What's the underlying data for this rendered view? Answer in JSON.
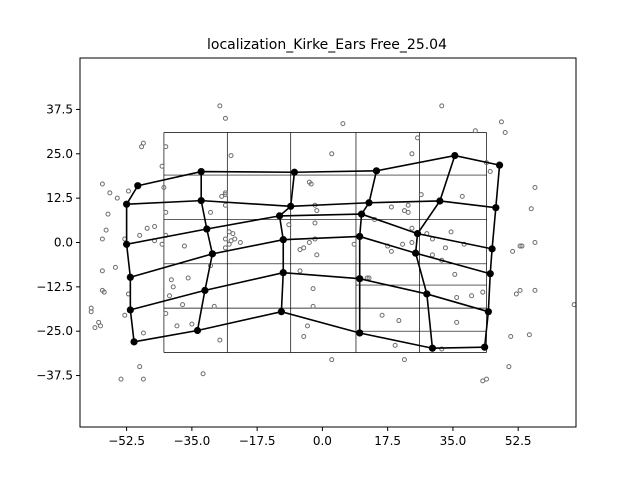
{
  "chart_data": {
    "type": "scatter",
    "title": "localization_Kirke_Ears Free_25.04",
    "xlabel": "",
    "ylabel": "",
    "xlim": [
      -65,
      68
    ],
    "ylim": [
      -52,
      52
    ],
    "x_ticks": [
      -52.5,
      -35.0,
      -17.5,
      0.0,
      17.5,
      35.0,
      52.5
    ],
    "x_tick_labels": [
      "−52.5",
      "−35.0",
      "−17.5",
      "0.0",
      "17.5",
      "35.0",
      "52.5"
    ],
    "y_ticks": [
      37.5,
      25.0,
      12.5,
      0.0,
      -12.5,
      -25.0,
      -37.5
    ],
    "y_tick_labels": [
      "37.5",
      "25.0",
      "12.5",
      "0.0",
      "−12.5",
      "−25.0",
      "−37.5"
    ],
    "reference_grid": {
      "x": [
        -42.5,
        -25.5,
        -8.5,
        9.0,
        26.0,
        44.0
      ],
      "y": [
        31.0,
        19.0,
        6.5,
        -6.0,
        -18.5,
        -31.0
      ],
      "extra_y": [
        -12.0,
        -25.0
      ]
    },
    "mesh_rows": [
      [
        [
          -49.5,
          16.0
        ],
        [
          -32.5,
          20.0
        ],
        [
          -7.5,
          19.8
        ],
        [
          14.5,
          20.2
        ],
        [
          35.5,
          24.5
        ],
        [
          47.5,
          21.8
        ]
      ],
      [
        [
          -52.5,
          10.8
        ],
        [
          -32.5,
          11.8
        ],
        [
          -8.5,
          10.2
        ],
        [
          12.5,
          11.2
        ],
        [
          31.5,
          11.7
        ],
        [
          46.5,
          9.8
        ]
      ],
      [
        [
          -52.5,
          -0.5
        ],
        [
          -31.0,
          3.8
        ],
        [
          -11.5,
          7.5
        ],
        [
          10.5,
          8.0
        ],
        [
          25.5,
          2.5
        ],
        [
          45.5,
          -1.8
        ]
      ],
      [
        [
          -51.5,
          -9.8
        ],
        [
          -29.5,
          -3.2
        ],
        [
          -10.5,
          0.8
        ],
        [
          10.0,
          1.7
        ],
        [
          25.0,
          -3.0
        ],
        [
          45.0,
          -8.8
        ]
      ],
      [
        [
          -51.5,
          -19.0
        ],
        [
          -31.5,
          -13.5
        ],
        [
          -10.5,
          -8.5
        ],
        [
          10.0,
          -10.2
        ],
        [
          28.0,
          -14.5
        ],
        [
          44.5,
          -19.5
        ]
      ],
      [
        [
          -50.5,
          -28.0
        ],
        [
          -33.5,
          -24.8
        ],
        [
          -11.0,
          -19.5
        ],
        [
          10.0,
          -25.5
        ],
        [
          29.5,
          -29.8
        ],
        [
          43.5,
          -29.5
        ]
      ]
    ],
    "scatter_points": [
      [
        -62,
        -18.5
      ],
      [
        -62,
        -19.5
      ],
      [
        -61,
        -24
      ],
      [
        -60,
        -22.5
      ],
      [
        -59.5,
        -23.5
      ],
      [
        -59,
        -13.5
      ],
      [
        -58.5,
        -14
      ],
      [
        -59,
        16.5
      ],
      [
        -58,
        3.5
      ],
      [
        -59,
        1
      ],
      [
        -57.5,
        8
      ],
      [
        -57,
        14
      ],
      [
        -55,
        12.5
      ],
      [
        -55.5,
        -7
      ],
      [
        -59,
        -8
      ],
      [
        -53,
        1
      ],
      [
        -52,
        14.5
      ],
      [
        -53,
        -20.5
      ],
      [
        -54,
        -38.5
      ],
      [
        -52,
        -14.5
      ],
      [
        -49,
        -35
      ],
      [
        -48,
        -38.5
      ],
      [
        -48.5,
        27
      ],
      [
        -48,
        28
      ],
      [
        -49,
        2
      ],
      [
        -47,
        4
      ],
      [
        -48,
        -25.5
      ],
      [
        -45,
        4.5
      ],
      [
        -45,
        0.5
      ],
      [
        -43,
        -0.5
      ],
      [
        -43,
        21.5
      ],
      [
        -42.5,
        15.5
      ],
      [
        -42,
        8.5
      ],
      [
        -42,
        2
      ],
      [
        -42,
        27
      ],
      [
        -42,
        -20
      ],
      [
        -41,
        -15
      ],
      [
        -40.5,
        -10.5
      ],
      [
        -40,
        -12.5
      ],
      [
        -39,
        -23.5
      ],
      [
        -37,
        -1
      ],
      [
        -35,
        -23
      ],
      [
        -32,
        -37
      ],
      [
        -30,
        -6.5
      ],
      [
        -30,
        8.5
      ],
      [
        -27,
        13
      ],
      [
        -26,
        14
      ],
      [
        -26,
        13.5
      ],
      [
        -26,
        10.5
      ],
      [
        -26,
        1
      ],
      [
        -25,
        3
      ],
      [
        -24.5,
        0.5
      ],
      [
        -23.5,
        1
      ],
      [
        -22,
        0
      ],
      [
        -26,
        -1.5
      ],
      [
        -25,
        -0.5
      ],
      [
        -24,
        2.5
      ],
      [
        -24.5,
        24.5
      ],
      [
        -26,
        35
      ],
      [
        -27.5,
        38.5
      ],
      [
        -29,
        -18
      ],
      [
        -27.5,
        -27.5
      ],
      [
        -9,
        5
      ],
      [
        -6,
        -2
      ],
      [
        -5,
        -1.5
      ],
      [
        -3.5,
        0
      ],
      [
        -3.5,
        17
      ],
      [
        -3,
        16.5
      ],
      [
        -2,
        5.5
      ],
      [
        -2,
        1
      ],
      [
        -2,
        10.5
      ],
      [
        -1.5,
        9
      ],
      [
        -1.5,
        -3.5
      ],
      [
        -2.5,
        -13
      ],
      [
        -2.5,
        -18
      ],
      [
        -4,
        -23.5
      ],
      [
        -5,
        -26.5
      ],
      [
        -6,
        -8
      ],
      [
        2.5,
        25
      ],
      [
        5.5,
        33.5
      ],
      [
        2.5,
        -33
      ],
      [
        8.5,
        -0.5
      ],
      [
        12.5,
        -10
      ],
      [
        12,
        -10
      ],
      [
        14,
        6.5
      ],
      [
        16,
        -20.5
      ],
      [
        17.5,
        -1
      ],
      [
        18.5,
        -2.5
      ],
      [
        18.5,
        10
      ],
      [
        19.5,
        -29
      ],
      [
        20.5,
        -22
      ],
      [
        21.5,
        -0.5
      ],
      [
        22,
        -33
      ],
      [
        22,
        9
      ],
      [
        23,
        10.5
      ],
      [
        23,
        8.5
      ],
      [
        24,
        0
      ],
      [
        24,
        4
      ],
      [
        24,
        25
      ],
      [
        25.5,
        29.5
      ],
      [
        26.5,
        13.5
      ],
      [
        28,
        2.5
      ],
      [
        29.5,
        1
      ],
      [
        29.5,
        -3.5
      ],
      [
        32,
        -5
      ],
      [
        32,
        -30
      ],
      [
        32,
        38.5
      ],
      [
        33,
        -1.5
      ],
      [
        34.5,
        3
      ],
      [
        35.5,
        -9
      ],
      [
        36,
        -15.5
      ],
      [
        36,
        -22.5
      ],
      [
        37.5,
        13
      ],
      [
        38,
        -0.5
      ],
      [
        40,
        -15
      ],
      [
        41,
        31.5
      ],
      [
        43,
        -14
      ],
      [
        43,
        -39
      ],
      [
        44,
        -38.5
      ],
      [
        44,
        22.5
      ],
      [
        45,
        20
      ],
      [
        48,
        34
      ],
      [
        49,
        31
      ],
      [
        50.5,
        -26.5
      ],
      [
        50,
        -35
      ],
      [
        51,
        -2.5
      ],
      [
        52,
        -14.5
      ],
      [
        53,
        -13.5
      ],
      [
        53.5,
        -1
      ],
      [
        53,
        -1
      ],
      [
        55.5,
        -26
      ],
      [
        56,
        9.5
      ],
      [
        57,
        15.5
      ],
      [
        57,
        0
      ],
      [
        57,
        -13.5
      ],
      [
        67.5,
        -17.5
      ],
      [
        -37.5,
        -17.5
      ],
      [
        -36,
        -10
      ]
    ]
  }
}
